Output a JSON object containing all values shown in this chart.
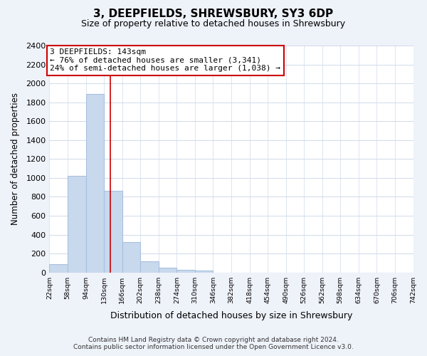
{
  "title": "3, DEEPFIELDS, SHREWSBURY, SY3 6DP",
  "subtitle": "Size of property relative to detached houses in Shrewsbury",
  "xlabel": "Distribution of detached houses by size in Shrewsbury",
  "ylabel": "Number of detached properties",
  "bin_edges": [
    22,
    58,
    94,
    130,
    166,
    202,
    238,
    274,
    310,
    346,
    382,
    418,
    454,
    490,
    526,
    562,
    598,
    634,
    670,
    706,
    742
  ],
  "bar_heights": [
    90,
    1020,
    1890,
    860,
    320,
    115,
    50,
    30,
    20,
    0,
    0,
    0,
    0,
    0,
    0,
    0,
    0,
    0,
    0,
    0
  ],
  "bar_color": "#c8d9ed",
  "bar_edge_color": "#a8c0de",
  "property_line_x": 143,
  "property_line_color": "#cc0000",
  "annotation_line1": "3 DEEPFIELDS: 143sqm",
  "annotation_line2": "← 76% of detached houses are smaller (3,341)",
  "annotation_line3": "24% of semi-detached houses are larger (1,038) →",
  "annotation_box_color": "#ffffff",
  "annotation_box_edge_color": "#cc0000",
  "ylim": [
    0,
    2400
  ],
  "ytick_step": 200,
  "footer_line1": "Contains HM Land Registry data © Crown copyright and database right 2024.",
  "footer_line2": "Contains public sector information licensed under the Open Government Licence v3.0.",
  "bg_color": "#eef2f9",
  "plot_bg_color": "#ffffff",
  "grid_color": "#d0daea"
}
